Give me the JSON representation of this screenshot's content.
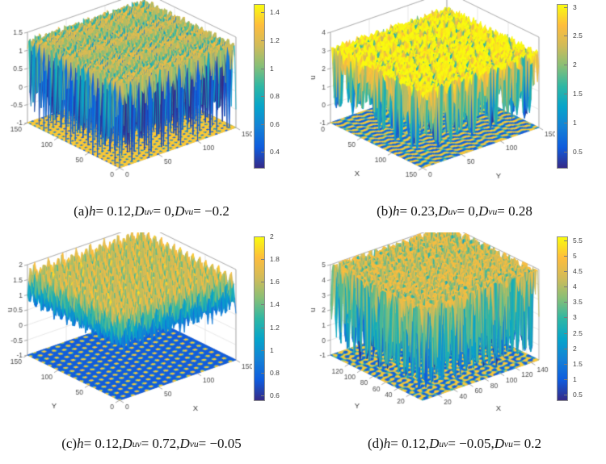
{
  "figure": {
    "background": "#ffffff",
    "colormap_name": "parula",
    "parula_stops": [
      "#352a87",
      "#0f5cdd",
      "#1481d6",
      "#06a4ca",
      "#2eb7a4",
      "#87bf77",
      "#d1bb59",
      "#febd3c",
      "#f9fb0e"
    ],
    "grid_color": "#dcdcdc",
    "box_color": "#a8a8a8",
    "tick_text_color": "#4a4a4a"
  },
  "chart_data": [
    {
      "type": "surface3d",
      "panel": "a",
      "caption_text": "(a) h = 0.12, Duv = 0, Dvu = −0.2",
      "caption_segments": [
        {
          "t": "(a) "
        },
        {
          "t": "h",
          "i": 1
        },
        {
          "t": " = 0.12, "
        },
        {
          "t": "D",
          "i": 1
        },
        {
          "t": "uv",
          "sub": 1
        },
        {
          "t": " = 0, "
        },
        {
          "t": "D",
          "i": 1
        },
        {
          "t": "vu",
          "sub": 1
        },
        {
          "t": " = −0.2"
        }
      ],
      "z_axis": {
        "label": "",
        "min": -1,
        "max": 1.5,
        "ticks": [
          "1.5",
          "1",
          "0.5",
          "0",
          "-0.5",
          "-1"
        ]
      },
      "left_axis": {
        "label": "",
        "min": 0,
        "max": 150,
        "reversed": false,
        "ticks": [
          "150",
          "100",
          "50",
          "0"
        ]
      },
      "right_axis": {
        "label": "",
        "min": 0,
        "max": 150,
        "ticks": [
          "0",
          "50",
          "100",
          "150"
        ]
      },
      "colorbar": {
        "min": 0.28,
        "max": 1.46,
        "ticks": [
          "1.4",
          "1.2",
          "1",
          "0.8",
          "0.6",
          "0.4"
        ]
      },
      "surface": {
        "pattern": "hex-wells",
        "description": "flat plateau near u=1.3 with narrow downward spikes at hexagonal lattice sites; floor shows blue spots on yellow",
        "k": 1.0,
        "plateau": 1.32,
        "depth": 2.35,
        "sharp": 2.2,
        "noise": 0.05,
        "seed": 11
      }
    },
    {
      "type": "surface3d",
      "panel": "b",
      "caption_text": "(b) h = 0.23, Duv = 0, Dvu = 0.28",
      "caption_segments": [
        {
          "t": "(b) "
        },
        {
          "t": "h",
          "i": 1
        },
        {
          "t": " = 0.23, "
        },
        {
          "t": "D",
          "i": 1
        },
        {
          "t": "uv",
          "sub": 1
        },
        {
          "t": " = 0, "
        },
        {
          "t": "D",
          "i": 1
        },
        {
          "t": "vu",
          "sub": 1
        },
        {
          "t": " = 0.28"
        }
      ],
      "z_axis": {
        "label": "u",
        "min": -1,
        "max": 4,
        "ticks": [
          "4",
          "3",
          "2",
          "1",
          "0",
          "-1"
        ]
      },
      "left_axis": {
        "label": "X",
        "min": 0,
        "max": 150,
        "reversed": true,
        "ticks": [
          "0",
          "50",
          "100",
          "150"
        ]
      },
      "right_axis": {
        "label": "Y",
        "min": 0,
        "max": 150,
        "ticks": [
          "0",
          "50",
          "100",
          "150"
        ]
      },
      "colorbar": {
        "min": 0.2,
        "max": 3.05,
        "ticks": [
          "3",
          "2.5",
          "2",
          "1.5",
          "1",
          "0.5"
        ]
      },
      "surface": {
        "pattern": "labyrinth",
        "description": "tall plateau near u=3 with deep labyrinthine canyons to u=0; floor shows yellow/blue stripe maze",
        "k": 0.75,
        "low": -0.25,
        "high": 3.15,
        "bias": 0.7,
        "gain": 2.2,
        "noise": 0.22,
        "seed": 22
      }
    },
    {
      "type": "surface3d",
      "panel": "c",
      "caption_text": "(c) h = 0.12, Duv = 0.72, Dvu = −0.05",
      "caption_segments": [
        {
          "t": "(c) "
        },
        {
          "t": "h",
          "i": 1
        },
        {
          "t": " = 0.12, "
        },
        {
          "t": "D",
          "i": 1
        },
        {
          "t": "uv",
          "sub": 1
        },
        {
          "t": " = 0.72, "
        },
        {
          "t": "D",
          "i": 1
        },
        {
          "t": "vu",
          "sub": 1
        },
        {
          "t": " = −0.05"
        }
      ],
      "z_axis": {
        "label": "u",
        "min": -1,
        "max": 2,
        "ticks": [
          "2",
          "1.5",
          "1",
          "0.5",
          "0",
          "-0.5",
          "-1"
        ]
      },
      "left_axis": {
        "label": "Y",
        "min": 0,
        "max": 150,
        "reversed": false,
        "ticks": [
          "150",
          "100",
          "50",
          "0"
        ]
      },
      "right_axis": {
        "label": "X",
        "min": 0,
        "max": 150,
        "ticks": [
          "0",
          "50",
          "100",
          "150"
        ]
      },
      "colorbar": {
        "min": 0.55,
        "max": 2.0,
        "ticks": [
          "2",
          "1.8",
          "1.6",
          "1.4",
          "1.2",
          "1",
          "0.8",
          "0.6"
        ]
      },
      "surface": {
        "pattern": "hex-peaks",
        "description": "dense field of peaks to u=2 on hexagonal lattice, valleys near u=0.5; floor shows yellow spots on blue",
        "k": 0.7,
        "low": 0.45,
        "high": 2.0,
        "power": 0.55,
        "noise": 0.06,
        "seed": 33
      }
    },
    {
      "type": "surface3d",
      "panel": "d",
      "caption_text": "(d) h = 0.12, Duv = −0.05, Dvu = 0.2",
      "caption_segments": [
        {
          "t": "(d) "
        },
        {
          "t": "h",
          "i": 1
        },
        {
          "t": " = 0.12, "
        },
        {
          "t": "D",
          "i": 1
        },
        {
          "t": "uv",
          "sub": 1
        },
        {
          "t": " = −0.05, "
        },
        {
          "t": "D",
          "i": 1
        },
        {
          "t": "vu",
          "sub": 1
        },
        {
          "t": " = 0.2"
        }
      ],
      "z_axis": {
        "label": "u",
        "min": -1,
        "max": 5,
        "ticks": [
          "5",
          "4",
          "3",
          "2",
          "1",
          "0",
          "-1"
        ]
      },
      "left_axis": {
        "label": "Y",
        "min": 0,
        "max": 150,
        "reversed": false,
        "ticks": [
          "120",
          "100",
          "80",
          "60",
          "40",
          "20"
        ]
      },
      "right_axis": {
        "label": "X",
        "min": 0,
        "max": 150,
        "ticks": [
          "20",
          "40",
          "60",
          "80",
          "100",
          "120",
          "140"
        ]
      },
      "colorbar": {
        "min": 0.3,
        "max": 5.62,
        "ticks": [
          "5.5",
          "5",
          "4.5",
          "4",
          "3.5",
          "3",
          "2.5",
          "2",
          "1.5",
          "1",
          "0.5"
        ]
      },
      "surface": {
        "pattern": "labyrinth",
        "description": "tall plateau near u=5 with deep labyrinthine canyons to u=0; floor shows yellow/blue stripe maze",
        "k": 0.8,
        "low": -0.45,
        "high": 5.1,
        "bias": 0.6,
        "gain": 2.2,
        "noise": 0.3,
        "seed": 44
      }
    }
  ]
}
